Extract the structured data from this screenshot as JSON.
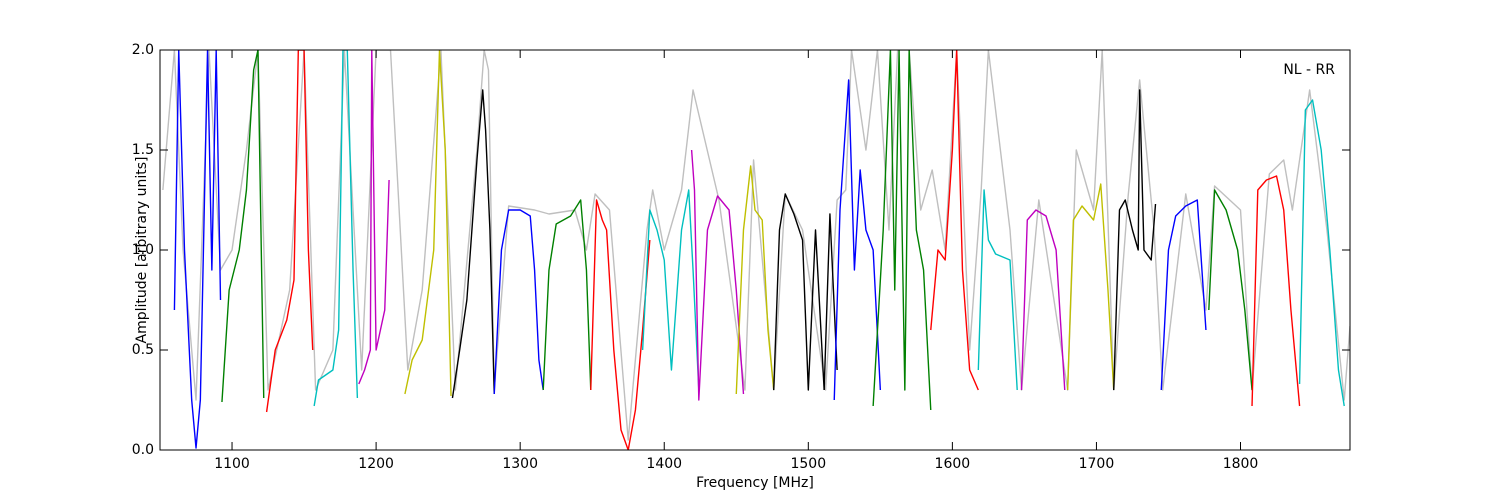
{
  "chart_data": {
    "type": "line",
    "annotation": "NL - RR",
    "xlabel": "Frequency [MHz]",
    "ylabel": "Amplitude [arbitrary units]",
    "xlim": [
      1050,
      1876
    ],
    "ylim": [
      0,
      2
    ],
    "xticks": [
      1100,
      1200,
      1300,
      1400,
      1500,
      1600,
      1700,
      1800
    ],
    "yticks": [
      {
        "value": 0,
        "label": "0.0"
      },
      0.5,
      {
        "value": 1,
        "label": "1.0"
      },
      1.5,
      {
        "value": 2,
        "label": "2.0"
      }
    ],
    "series": [
      {
        "color": "#bfbfbf",
        "x": [
          1052,
          1060,
          1066,
          1075,
          1084,
          1092,
          1100,
          1110,
          1118,
          1125,
          1140,
          1150,
          1158,
          1170,
          1178,
          1190,
          1200,
          1210,
          1222,
          1232,
          1245,
          1255,
          1270,
          1275,
          1278,
          1282,
          1292,
          1310,
          1320,
          1338,
          1346,
          1352,
          1362,
          1375,
          1388,
          1392,
          1400,
          1412,
          1420,
          1438,
          1456,
          1462,
          1476,
          1484,
          1496,
          1512,
          1520,
          1526,
          1530,
          1540,
          1548,
          1556,
          1562,
          1570,
          1578,
          1586,
          1595,
          1603,
          1612,
          1620,
          1625,
          1640,
          1648,
          1660,
          1680,
          1686,
          1698,
          1704,
          1712,
          1722,
          1730,
          1740,
          1746,
          1762,
          1776,
          1782,
          1800,
          1808,
          1820,
          1830,
          1836,
          1848,
          1860,
          1872,
          1876
        ],
        "values": [
          1.3,
          2.0,
          1.0,
          0.25,
          2.0,
          0.9,
          1.0,
          1.5,
          2.0,
          0.3,
          0.8,
          2.0,
          0.3,
          0.5,
          2.0,
          0.4,
          2.0,
          2.0,
          0.4,
          0.8,
          2.0,
          0.3,
          1.5,
          2.0,
          1.9,
          0.3,
          1.22,
          1.2,
          1.18,
          1.2,
          1.0,
          1.28,
          1.2,
          0.05,
          1.1,
          1.3,
          1.0,
          1.3,
          1.8,
          1.25,
          0.3,
          1.45,
          0.3,
          1.28,
          1.1,
          0.3,
          1.25,
          1.3,
          2.0,
          1.5,
          2.0,
          1.1,
          2.0,
          2.0,
          1.2,
          1.4,
          1.0,
          2.0,
          0.5,
          1.3,
          2.0,
          1.1,
          0.3,
          1.25,
          0.3,
          1.5,
          1.2,
          2.0,
          0.3,
          1.27,
          1.85,
          1.1,
          0.3,
          1.28,
          0.7,
          1.32,
          1.2,
          0.3,
          1.38,
          1.45,
          1.2,
          1.8,
          1.1,
          0.25,
          0.62
        ]
      },
      {
        "color": "#0000ff",
        "x": [
          1060,
          1063,
          1067,
          1072,
          1075,
          1078,
          1083,
          1086,
          1089,
          1092
        ],
        "values": [
          0.7,
          2.0,
          1.0,
          0.25,
          0.01,
          0.25,
          2.0,
          0.9,
          2.0,
          0.75
        ]
      },
      {
        "color": "#008000",
        "x": [
          1093,
          1098,
          1105,
          1110,
          1115,
          1118,
          1122
        ],
        "values": [
          0.24,
          0.8,
          1.0,
          1.3,
          1.9,
          2.0,
          0.26
        ]
      },
      {
        "color": "#ff0000",
        "x": [
          1124,
          1130,
          1138,
          1143,
          1146,
          1150,
          1153,
          1156
        ],
        "values": [
          0.19,
          0.5,
          0.65,
          0.85,
          2.0,
          2.0,
          1.0,
          0.5
        ]
      },
      {
        "color": "#00bfbf",
        "x": [
          1157,
          1160,
          1170,
          1174,
          1177,
          1180,
          1184,
          1187
        ],
        "values": [
          0.22,
          0.35,
          0.4,
          0.6,
          2.0,
          2.0,
          0.9,
          0.26
        ]
      },
      {
        "color": "#bf00bf",
        "x": [
          1188,
          1192,
          1196,
          1197,
          1200,
          1206,
          1209
        ],
        "values": [
          0.33,
          0.4,
          0.5,
          2.0,
          0.5,
          0.7,
          1.35
        ]
      },
      {
        "color": "#bfbf00",
        "x": [
          1220,
          1225,
          1232,
          1240,
          1244,
          1248,
          1252
        ],
        "values": [
          0.28,
          0.45,
          0.55,
          1.0,
          2.0,
          1.5,
          0.27
        ]
      },
      {
        "color": "#000000",
        "x": [
          1253,
          1258,
          1263,
          1270,
          1274,
          1276,
          1279,
          1282
        ],
        "values": [
          0.26,
          0.5,
          0.75,
          1.45,
          1.8,
          1.6,
          1.1,
          0.28
        ]
      },
      {
        "color": "#0000ff",
        "x": [
          1282,
          1287,
          1292,
          1300,
          1307,
          1310,
          1313,
          1316
        ],
        "values": [
          0.28,
          1.0,
          1.2,
          1.2,
          1.17,
          0.9,
          0.45,
          0.3
        ]
      },
      {
        "color": "#008000",
        "x": [
          1316,
          1320,
          1325,
          1335,
          1342,
          1346,
          1349
        ],
        "values": [
          0.3,
          0.9,
          1.13,
          1.17,
          1.25,
          0.9,
          0.3
        ]
      },
      {
        "color": "#ff0000",
        "x": [
          1349,
          1353,
          1357,
          1360,
          1365,
          1370,
          1375,
          1380,
          1385,
          1390
        ],
        "values": [
          0.3,
          1.25,
          1.15,
          1.1,
          0.5,
          0.1,
          0.0,
          0.2,
          0.6,
          1.05
        ]
      },
      {
        "color": "#00bfbf",
        "x": [
          1385,
          1390,
          1395,
          1400,
          1405,
          1412,
          1417,
          1420,
          1424
        ],
        "values": [
          0.5,
          1.2,
          1.1,
          0.95,
          0.4,
          1.1,
          1.3,
          0.9,
          0.3
        ]
      },
      {
        "color": "#bf00bf",
        "x": [
          1419,
          1421,
          1424,
          1430,
          1437,
          1445,
          1450,
          1455
        ],
        "values": [
          1.5,
          1.3,
          0.25,
          1.1,
          1.27,
          1.2,
          0.8,
          0.28
        ]
      },
      {
        "color": "#bfbf00",
        "x": [
          1450,
          1455,
          1460,
          1463,
          1468,
          1472,
          1476
        ],
        "values": [
          0.28,
          1.1,
          1.42,
          1.2,
          1.15,
          0.6,
          0.3
        ]
      },
      {
        "color": "#000000",
        "x": [
          1476,
          1480,
          1484,
          1490,
          1496,
          1500,
          1505,
          1511
        ],
        "values": [
          0.3,
          1.1,
          1.28,
          1.18,
          1.05,
          0.3,
          1.1,
          0.3
        ]
      },
      {
        "color": "#000000",
        "x": [
          1511,
          1515,
          1520
        ],
        "values": [
          0.3,
          1.18,
          0.4
        ]
      },
      {
        "color": "#0000ff",
        "x": [
          1518,
          1522,
          1528,
          1532,
          1536,
          1540,
          1545,
          1550
        ],
        "values": [
          0.25,
          1.2,
          1.85,
          0.9,
          1.4,
          1.1,
          1.0,
          0.3
        ]
      },
      {
        "color": "#008000",
        "x": [
          1545,
          1552,
          1557,
          1560,
          1563,
          1567,
          1570,
          1575,
          1580,
          1585
        ],
        "values": [
          0.22,
          1.1,
          2.0,
          0.8,
          2.0,
          0.3,
          2.0,
          1.1,
          0.9,
          0.2
        ]
      },
      {
        "color": "#ff0000",
        "x": [
          1585,
          1590,
          1595,
          1600,
          1603,
          1607,
          1612,
          1618
        ],
        "values": [
          0.6,
          1.0,
          0.95,
          1.5,
          2.0,
          0.9,
          0.4,
          0.3
        ]
      },
      {
        "color": "#00bfbf",
        "x": [
          1618,
          1622,
          1625,
          1630,
          1640,
          1645
        ],
        "values": [
          0.4,
          1.3,
          1.05,
          0.98,
          0.95,
          0.3
        ]
      },
      {
        "color": "#bf00bf",
        "x": [
          1648,
          1652,
          1658,
          1665,
          1672,
          1678
        ],
        "values": [
          0.3,
          1.15,
          1.2,
          1.17,
          1.0,
          0.3
        ]
      },
      {
        "color": "#bfbf00",
        "x": [
          1680,
          1684,
          1690,
          1698,
          1703,
          1708,
          1712
        ],
        "values": [
          0.3,
          1.15,
          1.22,
          1.15,
          1.33,
          0.8,
          0.3
        ]
      },
      {
        "color": "#000000",
        "x": [
          1712,
          1716,
          1720,
          1725,
          1729,
          1730,
          1733,
          1738,
          1741
        ],
        "values": [
          0.3,
          1.2,
          1.25,
          1.1,
          1.0,
          1.8,
          1.0,
          0.95,
          1.23
        ]
      },
      {
        "color": "#0000ff",
        "x": [
          1745,
          1750,
          1755,
          1762,
          1770,
          1776
        ],
        "values": [
          0.3,
          1.0,
          1.17,
          1.22,
          1.25,
          0.6
        ]
      },
      {
        "color": "#008000",
        "x": [
          1778,
          1782,
          1790,
          1798,
          1803,
          1808
        ],
        "values": [
          0.7,
          1.3,
          1.2,
          1.0,
          0.7,
          0.3
        ]
      },
      {
        "color": "#ff0000",
        "x": [
          1808,
          1812,
          1818,
          1825,
          1830,
          1835,
          1841
        ],
        "values": [
          0.22,
          1.3,
          1.35,
          1.37,
          1.2,
          0.7,
          0.22
        ]
      },
      {
        "color": "#00bfbf",
        "x": [
          1841,
          1845,
          1850,
          1856,
          1862,
          1868,
          1872
        ],
        "values": [
          0.33,
          1.7,
          1.75,
          1.5,
          1.0,
          0.4,
          0.22
        ]
      }
    ]
  }
}
